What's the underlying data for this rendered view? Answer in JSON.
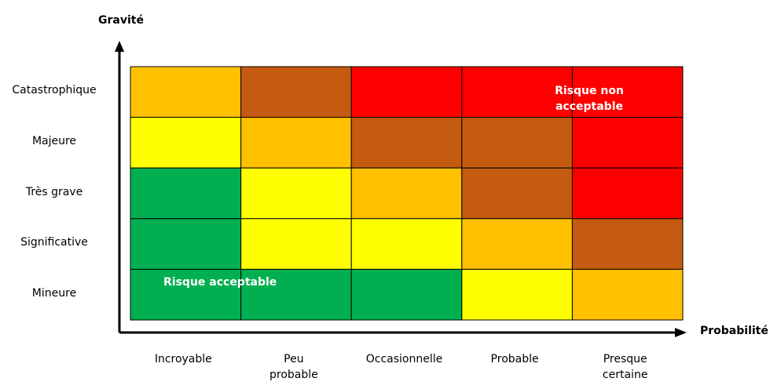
{
  "chart_data": {
    "type": "heatmap",
    "xlabel": "Probabilité",
    "ylabel": "Gravité",
    "x_categories": [
      "Incroyable",
      "Peu probable",
      "Occasionnelle",
      "Probable",
      "Presque certaine"
    ],
    "y_categories": [
      "Catastrophique",
      "Majeure",
      "Très grave",
      "Significative",
      "Mineure"
    ],
    "legend": {
      "green": "#00B050",
      "yellow": "#FFFF00",
      "orange": "#FFC000",
      "brown": "#C55A11",
      "red": "#FF0000"
    },
    "cells": [
      [
        "orange",
        "brown",
        "red",
        "red",
        "red"
      ],
      [
        "yellow",
        "orange",
        "brown",
        "brown",
        "red"
      ],
      [
        "green",
        "yellow",
        "orange",
        "brown",
        "red"
      ],
      [
        "green",
        "yellow",
        "yellow",
        "orange",
        "brown"
      ],
      [
        "green",
        "green",
        "green",
        "yellow",
        "orange"
      ]
    ],
    "annotations": {
      "acceptable": "Risque acceptable",
      "non_acceptable": "Risque non acceptable"
    },
    "grid": true
  }
}
